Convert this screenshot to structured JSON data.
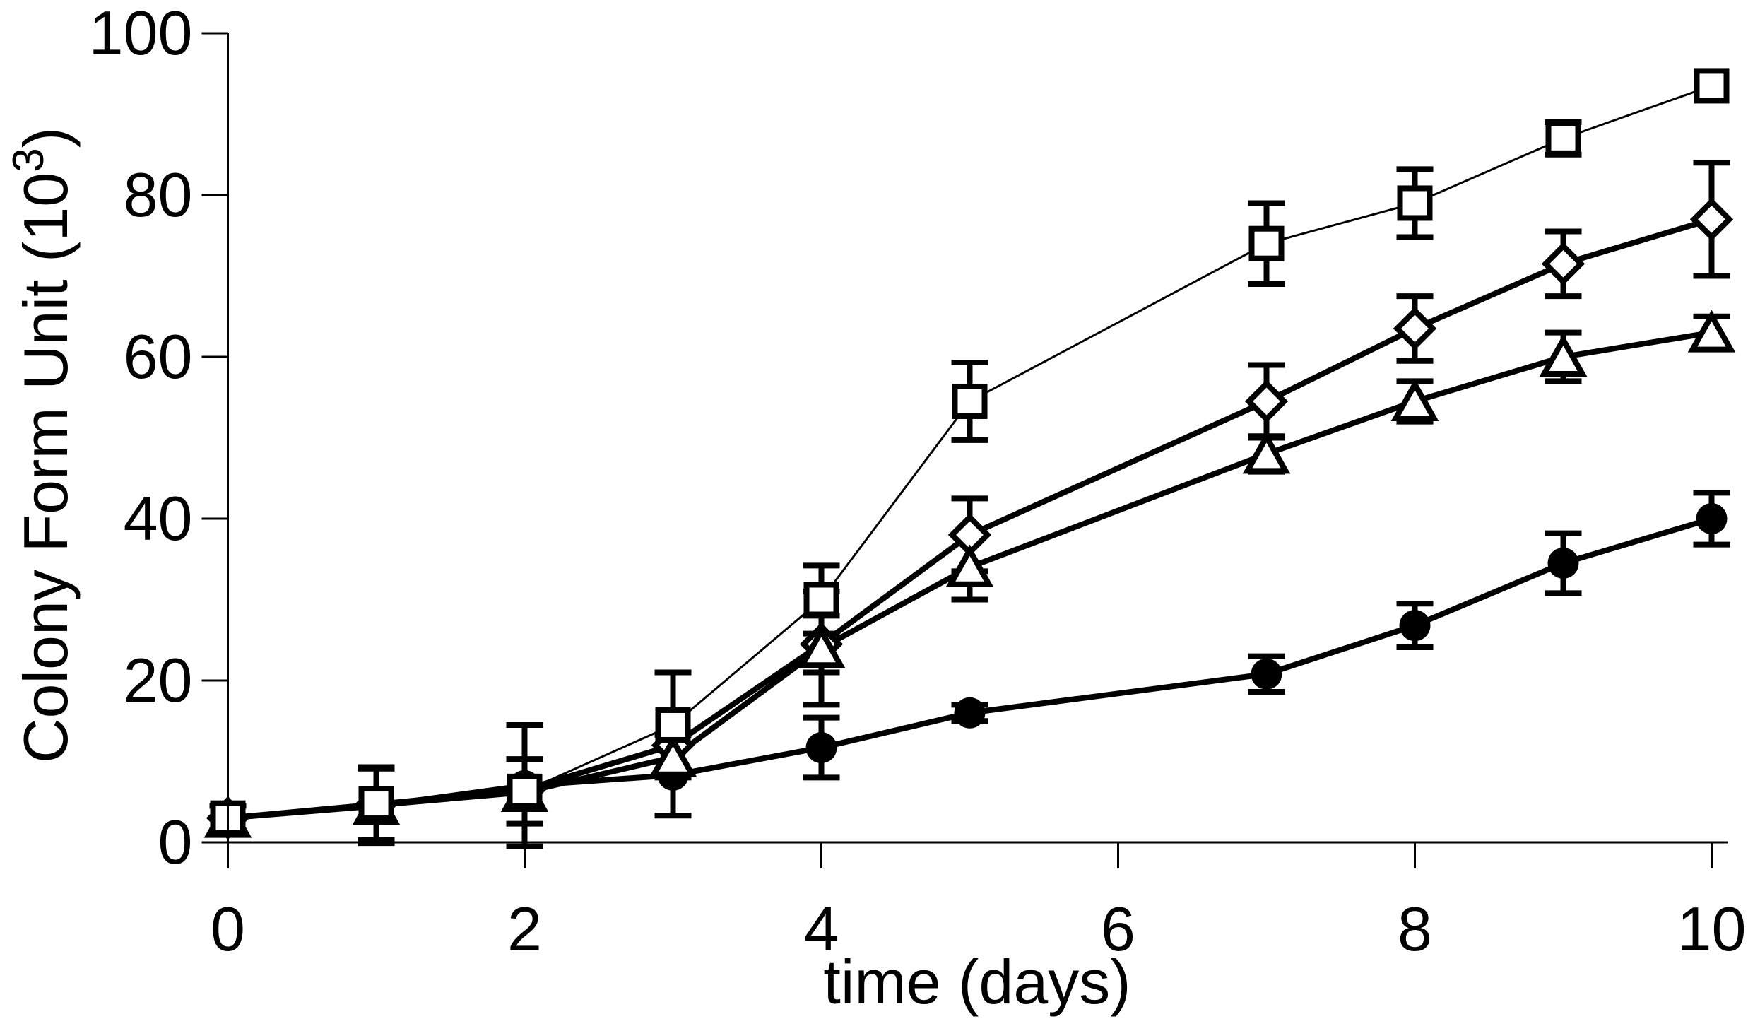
{
  "chart_data": {
    "type": "line",
    "title": "",
    "xlabel": "time (days)",
    "ylabel": {
      "text": "Colony Form Unit (10",
      "sup": "3",
      "close": ")"
    },
    "x_tick_labels": [
      "0",
      "2",
      "4",
      "6",
      "8",
      "10"
    ],
    "x_tick_positions": [
      0,
      2,
      4,
      6,
      8,
      10
    ],
    "y_tick_labels": [
      "0",
      "20",
      "40",
      "60",
      "80",
      "100"
    ],
    "y_tick_positions": [
      0,
      20,
      40,
      60,
      80,
      100
    ],
    "xlim": [
      0,
      10
    ],
    "ylim": [
      0,
      100
    ],
    "grid": false,
    "legend": "none",
    "x": [
      0,
      1,
      2,
      3,
      4,
      5,
      7,
      8,
      9,
      10
    ],
    "series": [
      {
        "name": "filled-circles",
        "marker": "circle",
        "marker_fill": "filled",
        "line_width": 8,
        "values": [
          3,
          4.5,
          7,
          8.3,
          11.7,
          16,
          20.8,
          26.8,
          34.5,
          40
        ],
        "err": [
          1.5,
          4.6,
          7.5,
          5,
          3.7,
          1,
          2.2,
          2.7,
          3.7,
          3.2
        ]
      },
      {
        "name": "open-diamonds",
        "marker": "diamond",
        "marker_fill": "open",
        "line_width": 8,
        "values": [
          3,
          4.7,
          6.5,
          12,
          24.5,
          38,
          54.5,
          63.5,
          71.5,
          77
        ],
        "err": [
          0,
          0,
          0,
          0,
          3.5,
          4.5,
          4.5,
          4,
          4,
          7
        ]
      },
      {
        "name": "open-triangles",
        "marker": "triangle",
        "marker_fill": "open",
        "line_width": 8,
        "values": [
          3,
          4.6,
          6.2,
          10.5,
          24,
          34,
          48,
          54.5,
          60,
          63
        ],
        "err": [
          0,
          0,
          0,
          0,
          7,
          4,
          2.2,
          2.5,
          3,
          2
        ]
      },
      {
        "name": "open-squares",
        "marker": "square",
        "marker_fill": "open",
        "line_width": 3,
        "values": [
          3,
          4.8,
          6.3,
          14.5,
          30,
          54.5,
          74,
          79,
          87,
          93.5
        ],
        "err": [
          1.5,
          4.5,
          4,
          6.5,
          4.2,
          4.8,
          5,
          4.2,
          2,
          0
        ]
      }
    ],
    "colors": {
      "foreground": "#000000",
      "background": "#ffffff"
    }
  }
}
